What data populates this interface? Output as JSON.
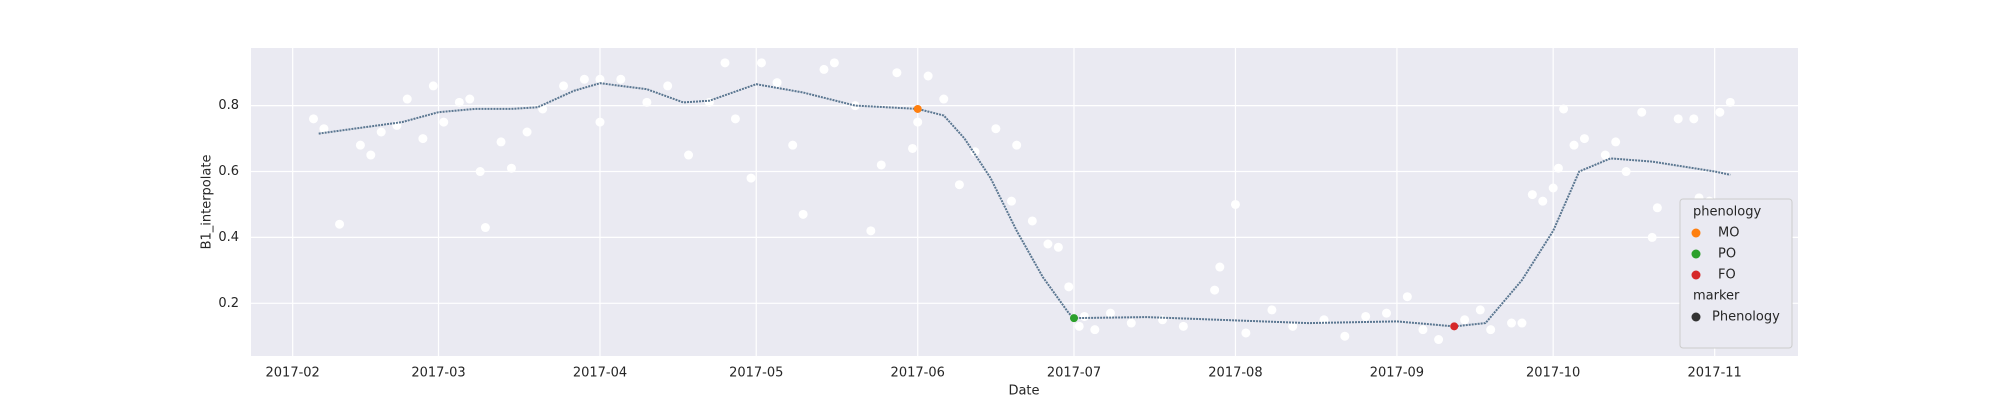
{
  "chart_data": {
    "type": "scatter",
    "x_label": "Date",
    "y_label": "B1_interpolate",
    "xlim": [
      "2017-01-24",
      "2017-11-17"
    ],
    "ylim": [
      0.04,
      0.975
    ],
    "xticks": [
      {
        "value": "2017-02-01",
        "label": "2017-02"
      },
      {
        "value": "2017-03-01",
        "label": "2017-03"
      },
      {
        "value": "2017-04-01",
        "label": "2017-04"
      },
      {
        "value": "2017-05-01",
        "label": "2017-05"
      },
      {
        "value": "2017-06-01",
        "label": "2017-06"
      },
      {
        "value": "2017-07-01",
        "label": "2017-07"
      },
      {
        "value": "2017-08-01",
        "label": "2017-08"
      },
      {
        "value": "2017-09-01",
        "label": "2017-09"
      },
      {
        "value": "2017-10-01",
        "label": "2017-10"
      },
      {
        "value": "2017-11-01",
        "label": "2017-11"
      }
    ],
    "yticks": [
      0.2,
      0.4,
      0.6,
      0.8
    ],
    "grid": true,
    "background": "#eaeaf2",
    "points": {
      "color": "#ffffff",
      "x": [
        "2017-02-05",
        "2017-02-07",
        "2017-02-10",
        "2017-02-14",
        "2017-02-16",
        "2017-02-18",
        "2017-02-21",
        "2017-02-23",
        "2017-02-26",
        "2017-02-28",
        "2017-03-02",
        "2017-03-05",
        "2017-03-07",
        "2017-03-09",
        "2017-03-10",
        "2017-03-13",
        "2017-03-15",
        "2017-03-18",
        "2017-03-21",
        "2017-03-25",
        "2017-03-29",
        "2017-04-01",
        "2017-04-01",
        "2017-04-05",
        "2017-04-10",
        "2017-04-14",
        "2017-04-18",
        "2017-04-22",
        "2017-04-25",
        "2017-04-27",
        "2017-04-30",
        "2017-05-02",
        "2017-05-05",
        "2017-05-08",
        "2017-05-10",
        "2017-05-14",
        "2017-05-16",
        "2017-05-20",
        "2017-05-23",
        "2017-05-25",
        "2017-05-28",
        "2017-05-31",
        "2017-06-01",
        "2017-06-03",
        "2017-06-06",
        "2017-06-09",
        "2017-06-12",
        "2017-06-16",
        "2017-06-19",
        "2017-06-20",
        "2017-06-23",
        "2017-06-26",
        "2017-06-28",
        "2017-06-30",
        "2017-07-02",
        "2017-07-03",
        "2017-07-05",
        "2017-07-08",
        "2017-07-12",
        "2017-07-18",
        "2017-07-22",
        "2017-07-28",
        "2017-07-29",
        "2017-08-01",
        "2017-08-03",
        "2017-08-08",
        "2017-08-12",
        "2017-08-18",
        "2017-08-22",
        "2017-08-26",
        "2017-08-30",
        "2017-09-03",
        "2017-09-06",
        "2017-09-09",
        "2017-09-14",
        "2017-09-17",
        "2017-09-19",
        "2017-09-23",
        "2017-09-25",
        "2017-09-27",
        "2017-09-29",
        "2017-10-01",
        "2017-10-02",
        "2017-10-03",
        "2017-10-05",
        "2017-10-07",
        "2017-10-11",
        "2017-10-13",
        "2017-10-15",
        "2017-10-18",
        "2017-10-20",
        "2017-10-21",
        "2017-10-25",
        "2017-10-28",
        "2017-10-29",
        "2017-10-31",
        "2017-11-02",
        "2017-11-04"
      ],
      "values": [
        0.76,
        0.73,
        0.44,
        0.68,
        0.65,
        0.72,
        0.74,
        0.82,
        0.7,
        0.86,
        0.75,
        0.81,
        0.82,
        0.6,
        0.43,
        0.69,
        0.61,
        0.72,
        0.79,
        0.86,
        0.88,
        0.88,
        0.75,
        0.88,
        0.81,
        0.86,
        0.65,
        0.81,
        0.93,
        0.76,
        0.58,
        0.93,
        0.87,
        0.68,
        0.47,
        0.91,
        0.93,
        0.8,
        0.42,
        0.62,
        0.9,
        0.67,
        0.75,
        0.89,
        0.82,
        0.56,
        0.66,
        0.73,
        0.51,
        0.68,
        0.45,
        0.38,
        0.37,
        0.25,
        0.13,
        0.16,
        0.12,
        0.17,
        0.14,
        0.15,
        0.13,
        0.24,
        0.31,
        0.5,
        0.11,
        0.18,
        0.13,
        0.15,
        0.1,
        0.16,
        0.17,
        0.22,
        0.12,
        0.09,
        0.15,
        0.18,
        0.12,
        0.14,
        0.14,
        0.53,
        0.51,
        0.55,
        0.61,
        0.79,
        0.68,
        0.7,
        0.65,
        0.69,
        0.6,
        0.78,
        0.4,
        0.49,
        0.76,
        0.76,
        0.52,
        0.51,
        0.78,
        0.81
      ]
    },
    "line": {
      "color": "#5b7791",
      "x": [
        "2017-02-06",
        "2017-02-15",
        "2017-02-22",
        "2017-03-01",
        "2017-03-08",
        "2017-03-15",
        "2017-03-20",
        "2017-03-27",
        "2017-04-01",
        "2017-04-10",
        "2017-04-17",
        "2017-04-22",
        "2017-05-01",
        "2017-05-10",
        "2017-05-20",
        "2017-06-01",
        "2017-06-06",
        "2017-06-10",
        "2017-06-15",
        "2017-06-20",
        "2017-06-25",
        "2017-06-30",
        "2017-07-01",
        "2017-07-15",
        "2017-08-01",
        "2017-08-15",
        "2017-09-01",
        "2017-09-12",
        "2017-09-18",
        "2017-09-25",
        "2017-10-01",
        "2017-10-06",
        "2017-10-12",
        "2017-10-20",
        "2017-11-01",
        "2017-11-04"
      ],
      "values": [
        0.715,
        0.735,
        0.75,
        0.78,
        0.79,
        0.79,
        0.795,
        0.845,
        0.868,
        0.85,
        0.81,
        0.815,
        0.865,
        0.84,
        0.8,
        0.79,
        0.77,
        0.7,
        0.58,
        0.42,
        0.28,
        0.17,
        0.155,
        0.158,
        0.148,
        0.14,
        0.145,
        0.13,
        0.14,
        0.27,
        0.42,
        0.6,
        0.64,
        0.63,
        0.6,
        0.59
      ]
    },
    "legend_title": "phenology",
    "legend_position": "lower right",
    "series": [
      {
        "name": "MO",
        "color": "#ff7f0e",
        "x": [
          "2017-06-01"
        ],
        "values": [
          0.79
        ]
      },
      {
        "name": "PO",
        "color": "#2ca02c",
        "x": [
          "2017-07-01"
        ],
        "values": [
          0.155
        ]
      },
      {
        "name": "FO",
        "color": "#d62728",
        "x": [
          "2017-09-12"
        ],
        "values": [
          0.13
        ]
      }
    ],
    "marker_legend": {
      "title": "marker",
      "label": "Phenology",
      "color": "#333333"
    }
  }
}
